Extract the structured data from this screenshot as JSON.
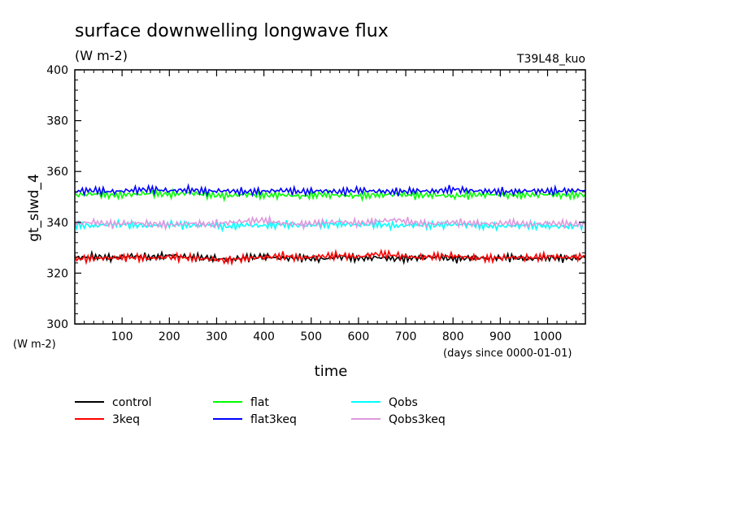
{
  "chart_data": {
    "type": "line",
    "title": "surface downwelling longwave flux",
    "units_label": "(W m-2)",
    "run_label": "T39L48_kuo",
    "ylabel": "gt_slwd_4",
    "y_units_label": "(W m-2)",
    "xlabel": "time",
    "x_units_label": "(days since 0000-01-01)",
    "xlim": [
      0,
      1080
    ],
    "ylim": [
      300,
      400
    ],
    "x_ticks": [
      100,
      200,
      300,
      400,
      500,
      600,
      700,
      800,
      900,
      1000
    ],
    "x_tick_labels": [
      "100",
      "200",
      "300",
      "400",
      "500",
      "600",
      "700",
      "800",
      "900",
      "1000"
    ],
    "y_ticks": [
      300,
      320,
      340,
      360,
      380,
      400
    ],
    "y_tick_labels": [
      "300",
      "320",
      "340",
      "360",
      "380",
      "400"
    ],
    "grid": false,
    "legend_position": "bottom",
    "series": [
      {
        "name": "control",
        "color": "#000000",
        "x": [
          0,
          40,
          80,
          120,
          160,
          200,
          240,
          280,
          320,
          360,
          400,
          440,
          480,
          520,
          560,
          600,
          640,
          680,
          720,
          760,
          800,
          840,
          880,
          920,
          960,
          1000,
          1040,
          1080
        ],
        "values": [
          326,
          326.5,
          326,
          326.8,
          326.2,
          327,
          326.4,
          326,
          325.4,
          326,
          326.6,
          325.8,
          326,
          325.5,
          326.4,
          325.8,
          326.2,
          325.6,
          326,
          326.4,
          325.6,
          326,
          325.8,
          326.2,
          325.6,
          326,
          325.8,
          326
        ]
      },
      {
        "name": "3keq",
        "color": "#ff0000",
        "x": [
          0,
          40,
          80,
          120,
          160,
          200,
          240,
          280,
          320,
          360,
          400,
          440,
          480,
          520,
          560,
          600,
          640,
          680,
          720,
          760,
          800,
          840,
          880,
          920,
          960,
          1000,
          1040,
          1080
        ],
        "values": [
          325.6,
          325.8,
          326,
          326.2,
          325.8,
          326.4,
          326,
          325.6,
          325,
          325.8,
          326.2,
          326.8,
          326,
          326.6,
          327,
          326.4,
          327.6,
          327,
          326.2,
          326.6,
          326.8,
          326,
          325.8,
          326.2,
          326,
          326.6,
          326.2,
          326.6
        ]
      },
      {
        "name": "flat",
        "color": "#00ff00",
        "x": [
          0,
          40,
          80,
          120,
          160,
          200,
          240,
          280,
          320,
          360,
          400,
          440,
          480,
          520,
          560,
          600,
          640,
          680,
          720,
          760,
          800,
          840,
          880,
          920,
          960,
          1000,
          1040,
          1080
        ],
        "values": [
          350.8,
          351.2,
          350.6,
          351,
          351.4,
          351,
          351.6,
          350.8,
          350.4,
          351,
          350.6,
          350.8,
          350.2,
          351,
          350.6,
          350.4,
          350.8,
          351,
          350.6,
          350.8,
          350.2,
          350.8,
          351,
          350.6,
          350.8,
          351,
          350.6,
          351
        ]
      },
      {
        "name": "flat3keq",
        "color": "#0000ff",
        "x": [
          0,
          40,
          80,
          120,
          160,
          200,
          240,
          280,
          320,
          360,
          400,
          440,
          480,
          520,
          560,
          600,
          640,
          680,
          720,
          760,
          800,
          840,
          880,
          920,
          960,
          1000,
          1040,
          1080
        ],
        "values": [
          352.2,
          352.6,
          352,
          352.6,
          353,
          352.4,
          352.8,
          352.2,
          352.4,
          352,
          352.2,
          352.6,
          352,
          352.4,
          352,
          352.6,
          352.2,
          352,
          352.4,
          352.2,
          353,
          352.4,
          352.2,
          352,
          352.4,
          352.2,
          352.4,
          352.6
        ]
      },
      {
        "name": "Qobs",
        "color": "#00ffff",
        "x": [
          0,
          40,
          80,
          120,
          160,
          200,
          240,
          280,
          320,
          360,
          400,
          440,
          480,
          520,
          560,
          600,
          640,
          680,
          720,
          760,
          800,
          840,
          880,
          920,
          960,
          1000,
          1040,
          1080
        ],
        "values": [
          339,
          338.6,
          339.4,
          339,
          338.6,
          339.2,
          338.8,
          339,
          338.2,
          339,
          338.6,
          339.2,
          338.8,
          339,
          339.4,
          339,
          339.2,
          338.6,
          339,
          338.8,
          339.2,
          339,
          338.4,
          338.6,
          338.8,
          338.6,
          338.2,
          339
        ]
      },
      {
        "name": "Qobs3keq",
        "color": "#dd99dd",
        "x": [
          0,
          40,
          80,
          120,
          160,
          200,
          240,
          280,
          320,
          360,
          400,
          440,
          480,
          520,
          560,
          600,
          640,
          680,
          720,
          760,
          800,
          840,
          880,
          920,
          960,
          1000,
          1040,
          1080
        ],
        "values": [
          339.6,
          340,
          339.2,
          339.8,
          339.4,
          339,
          339.6,
          339.2,
          339.8,
          340.4,
          340.8,
          339.6,
          339.2,
          339.8,
          340.2,
          339.6,
          340.4,
          341,
          339.8,
          339.4,
          340,
          339.6,
          339.4,
          339.8,
          339.2,
          339.6,
          339.4,
          339.2
        ]
      }
    ]
  }
}
